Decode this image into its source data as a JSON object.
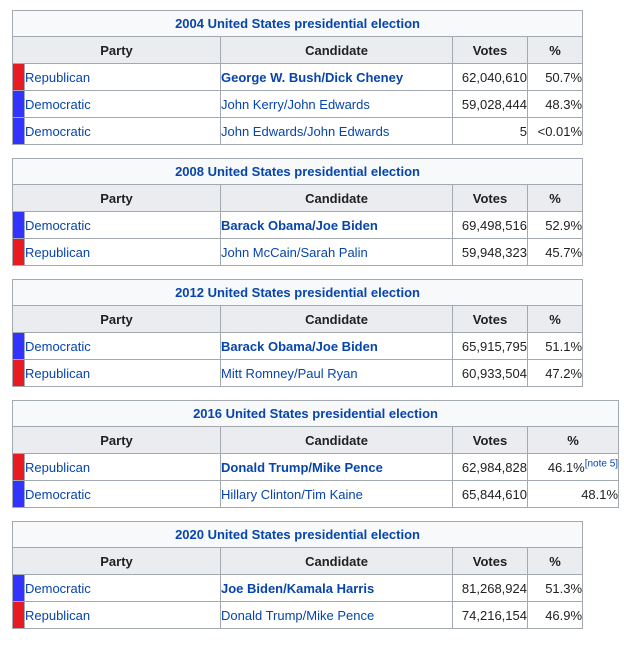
{
  "colors": {
    "republican_swatch": "#e81b23",
    "democratic_swatch": "#3333ff",
    "link_blue": "#0645ad",
    "header_bg": "#eaecf0",
    "caption_bg": "#f8f9fa",
    "border": "#a2a9b1",
    "text": "#202122"
  },
  "columns": {
    "party": "Party",
    "candidate": "Candidate",
    "votes": "Votes",
    "percent": "%"
  },
  "tables": [
    {
      "title": "2004 United States presidential election",
      "wide_percent": false,
      "rows": [
        {
          "party": "Republican",
          "party_color": "#e81b23",
          "candidate": "George W. Bush/Dick Cheney",
          "winner": true,
          "votes": "62,040,610",
          "percent": "50.7%",
          "note": ""
        },
        {
          "party": "Democratic",
          "party_color": "#3333ff",
          "candidate": "John Kerry/John Edwards",
          "winner": false,
          "votes": "59,028,444",
          "percent": "48.3%",
          "note": ""
        },
        {
          "party": "Democratic",
          "party_color": "#3333ff",
          "candidate": "John Edwards/John Edwards",
          "winner": false,
          "votes": "5",
          "percent": "<0.01%",
          "note": ""
        }
      ]
    },
    {
      "title": "2008 United States presidential election",
      "wide_percent": false,
      "rows": [
        {
          "party": "Democratic",
          "party_color": "#3333ff",
          "candidate": "Barack Obama/Joe Biden",
          "winner": true,
          "votes": "69,498,516",
          "percent": "52.9%",
          "note": ""
        },
        {
          "party": "Republican",
          "party_color": "#e81b23",
          "candidate": "John McCain/Sarah Palin",
          "winner": false,
          "votes": "59,948,323",
          "percent": "45.7%",
          "note": ""
        }
      ]
    },
    {
      "title": "2012 United States presidential election",
      "wide_percent": false,
      "rows": [
        {
          "party": "Democratic",
          "party_color": "#3333ff",
          "candidate": "Barack Obama/Joe Biden",
          "winner": true,
          "votes": "65,915,795",
          "percent": "51.1%",
          "note": ""
        },
        {
          "party": "Republican",
          "party_color": "#e81b23",
          "candidate": "Mitt Romney/Paul Ryan",
          "winner": false,
          "votes": "60,933,504",
          "percent": "47.2%",
          "note": ""
        }
      ]
    },
    {
      "title": "2016 United States presidential election",
      "wide_percent": true,
      "rows": [
        {
          "party": "Republican",
          "party_color": "#e81b23",
          "candidate": "Donald Trump/Mike Pence",
          "winner": true,
          "votes": "62,984,828",
          "percent": "46.1%",
          "note": "[note 5]"
        },
        {
          "party": "Democratic",
          "party_color": "#3333ff",
          "candidate": "Hillary Clinton/Tim Kaine",
          "winner": false,
          "votes": "65,844,610",
          "percent": "48.1%",
          "note": ""
        }
      ]
    },
    {
      "title": "2020 United States presidential election",
      "wide_percent": false,
      "rows": [
        {
          "party": "Democratic",
          "party_color": "#3333ff",
          "candidate": "Joe Biden/Kamala Harris",
          "winner": true,
          "votes": "81,268,924",
          "percent": "51.3%",
          "note": ""
        },
        {
          "party": "Republican",
          "party_color": "#e81b23",
          "candidate": "Donald Trump/Mike Pence",
          "winner": false,
          "votes": "74,216,154",
          "percent": "46.9%",
          "note": ""
        }
      ]
    }
  ]
}
